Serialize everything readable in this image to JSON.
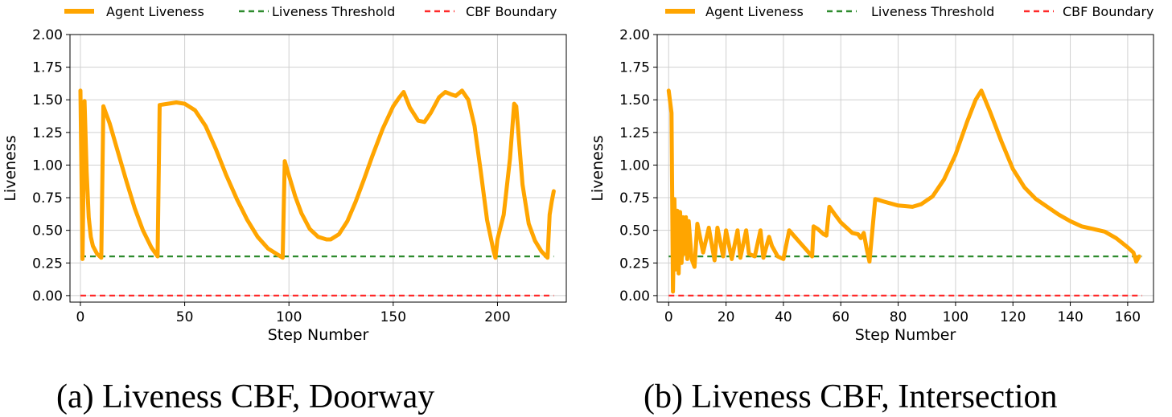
{
  "legend": {
    "agent": "Agent Liveness",
    "threshold": "Liveness Threshold",
    "boundary": "CBF Boundary"
  },
  "colors": {
    "agent": "#FFA500",
    "threshold": "#2E8B2E",
    "boundary": "#FF2A2A"
  },
  "chart_data": [
    {
      "type": "line",
      "caption": "(a) Liveness CBF, Doorway",
      "xlabel": "Step Number",
      "ylabel": "Liveness",
      "xlim": [
        -5,
        233
      ],
      "ylim": [
        -0.05,
        2.0
      ],
      "xticks": [
        0,
        50,
        100,
        150,
        200
      ],
      "yticks": [
        "0.00",
        "0.25",
        "0.50",
        "0.75",
        "1.00",
        "1.25",
        "1.50",
        "1.75",
        "2.00"
      ],
      "threshold": 0.3,
      "boundary": 0.0,
      "line_range": [
        0,
        227
      ],
      "series": [
        {
          "name": "Agent Liveness",
          "x": [
            0,
            1,
            2,
            3,
            4,
            5,
            6,
            8,
            10,
            11,
            14,
            18,
            22,
            26,
            30,
            34,
            37,
            38,
            42,
            46,
            50,
            55,
            60,
            65,
            70,
            75,
            80,
            85,
            90,
            95,
            97,
            98,
            100,
            103,
            106,
            110,
            114,
            118,
            120,
            124,
            128,
            132,
            136,
            140,
            145,
            150,
            153,
            155,
            158,
            162,
            165,
            168,
            172,
            175,
            178,
            180,
            183,
            186,
            189,
            192,
            195,
            198,
            199,
            200,
            203,
            206,
            208,
            209,
            212,
            215,
            218,
            221,
            224,
            225,
            226,
            227
          ],
          "values": [
            1.57,
            0.28,
            1.49,
            0.95,
            0.6,
            0.45,
            0.38,
            0.32,
            0.29,
            1.45,
            1.32,
            1.1,
            0.88,
            0.67,
            0.5,
            0.37,
            0.3,
            1.46,
            1.47,
            1.48,
            1.47,
            1.42,
            1.3,
            1.12,
            0.92,
            0.74,
            0.58,
            0.45,
            0.36,
            0.31,
            0.29,
            1.03,
            0.92,
            0.76,
            0.63,
            0.51,
            0.45,
            0.43,
            0.43,
            0.47,
            0.57,
            0.72,
            0.89,
            1.07,
            1.28,
            1.45,
            1.52,
            1.56,
            1.44,
            1.34,
            1.33,
            1.4,
            1.52,
            1.56,
            1.54,
            1.53,
            1.57,
            1.5,
            1.3,
            0.95,
            0.58,
            0.35,
            0.29,
            0.43,
            0.62,
            1.05,
            1.47,
            1.45,
            0.85,
            0.55,
            0.42,
            0.34,
            0.29,
            0.62,
            0.72,
            0.8
          ]
        }
      ]
    },
    {
      "type": "line",
      "caption": "(b) Liveness CBF, Intersection",
      "xlabel": "Step Number",
      "ylabel": "Liveness",
      "xlim": [
        -4,
        169
      ],
      "ylim": [
        -0.05,
        2.0
      ],
      "xticks": [
        0,
        20,
        40,
        60,
        80,
        100,
        120,
        140,
        160
      ],
      "yticks": [
        "0.00",
        "0.25",
        "0.50",
        "0.75",
        "1.00",
        "1.25",
        "1.50",
        "1.75",
        "2.00"
      ],
      "threshold": 0.3,
      "boundary": 0.0,
      "line_range": [
        0,
        165
      ],
      "series": [
        {
          "name": "Agent Liveness",
          "x": [
            0,
            1,
            1.5,
            2,
            2.5,
            3,
            3.5,
            4,
            4.5,
            5,
            5.5,
            6,
            6.5,
            7,
            8,
            9,
            10,
            12,
            14,
            16,
            17,
            19,
            20,
            22,
            24,
            25,
            27,
            28,
            30,
            32,
            33,
            35,
            36,
            38,
            40,
            42,
            44,
            46,
            48,
            50,
            50.5,
            52,
            54,
            55,
            56,
            58,
            60,
            62,
            64,
            66,
            67,
            68,
            69,
            70,
            72,
            75,
            80,
            85,
            88,
            92,
            96,
            100,
            104,
            107,
            109,
            112,
            116,
            120,
            124,
            128,
            132,
            136,
            140,
            144,
            148,
            152,
            156,
            160,
            162,
            163,
            164
          ],
          "values": [
            1.57,
            1.4,
            0.03,
            0.74,
            0.2,
            0.65,
            0.17,
            0.64,
            0.25,
            0.6,
            0.32,
            0.6,
            0.28,
            0.57,
            0.28,
            0.22,
            0.55,
            0.33,
            0.52,
            0.27,
            0.52,
            0.3,
            0.5,
            0.28,
            0.5,
            0.29,
            0.5,
            0.32,
            0.3,
            0.5,
            0.29,
            0.45,
            0.38,
            0.3,
            0.28,
            0.5,
            0.45,
            0.4,
            0.35,
            0.3,
            0.53,
            0.51,
            0.47,
            0.46,
            0.68,
            0.62,
            0.56,
            0.52,
            0.48,
            0.47,
            0.44,
            0.48,
            0.36,
            0.26,
            0.74,
            0.72,
            0.69,
            0.68,
            0.7,
            0.76,
            0.89,
            1.08,
            1.33,
            1.5,
            1.57,
            1.41,
            1.18,
            0.97,
            0.83,
            0.74,
            0.68,
            0.62,
            0.57,
            0.53,
            0.51,
            0.49,
            0.44,
            0.37,
            0.33,
            0.26,
            0.3
          ]
        }
      ]
    }
  ]
}
